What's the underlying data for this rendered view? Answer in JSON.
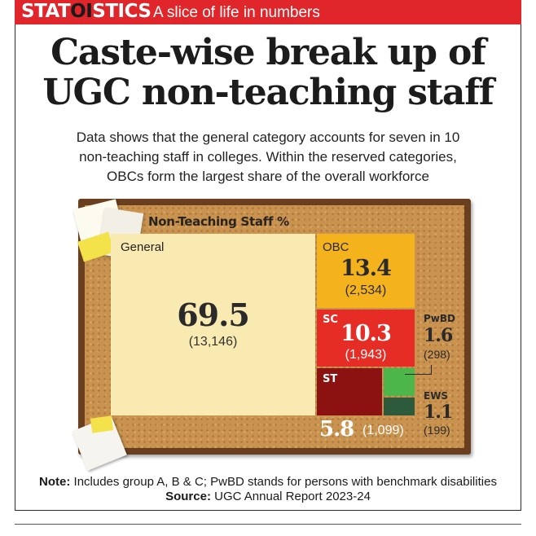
{
  "header": {
    "brand_pre": "STAT",
    "brand_accent": "OI",
    "brand_post": "STICS",
    "tagline": "A slice of life in numbers",
    "bar_color": "#e0262b"
  },
  "headline": {
    "line1": "Caste-wise break up of",
    "line2": "UGC non-teaching staff"
  },
  "subtitle": {
    "line1": "Data shows that the general category accounts for seven in 10",
    "line2": "non-teaching staff in colleges. Within the reserved categories,",
    "line3": "OBCs form the largest share of the overall workforce"
  },
  "chart_data": {
    "type": "treemap",
    "title": "Non-Teaching Staff %",
    "unit": "%",
    "series": [
      {
        "name": "General",
        "value": 69.5,
        "value_label": "69.5",
        "count": "(13,146)",
        "color": "#f8eab0"
      },
      {
        "name": "OBC",
        "value": 13.4,
        "value_label": "13.4",
        "count": "(2,534)",
        "color": "#f4b21c"
      },
      {
        "name": "SC",
        "value": 10.3,
        "value_label": "10.3",
        "count": "(1,943)",
        "color": "#e52d26"
      },
      {
        "name": "ST",
        "value": 5.8,
        "value_label": "5.8",
        "count": "(1,099)",
        "color": "#8c1212"
      },
      {
        "name": "PwBD",
        "value": 1.6,
        "value_label": "1.6",
        "count": "(298)",
        "color": "#4db64a"
      },
      {
        "name": "EWS",
        "value": 1.1,
        "value_label": "1.1",
        "count": "(199)",
        "color": "#2c5a3a"
      }
    ]
  },
  "footer": {
    "note_label": "Note:",
    "note_text": " Includes group A, B & C; PwBD stands for persons with benchmark disabilities",
    "source_label": "Source:",
    "source_text": " UGC Annual Report 2023-24"
  }
}
